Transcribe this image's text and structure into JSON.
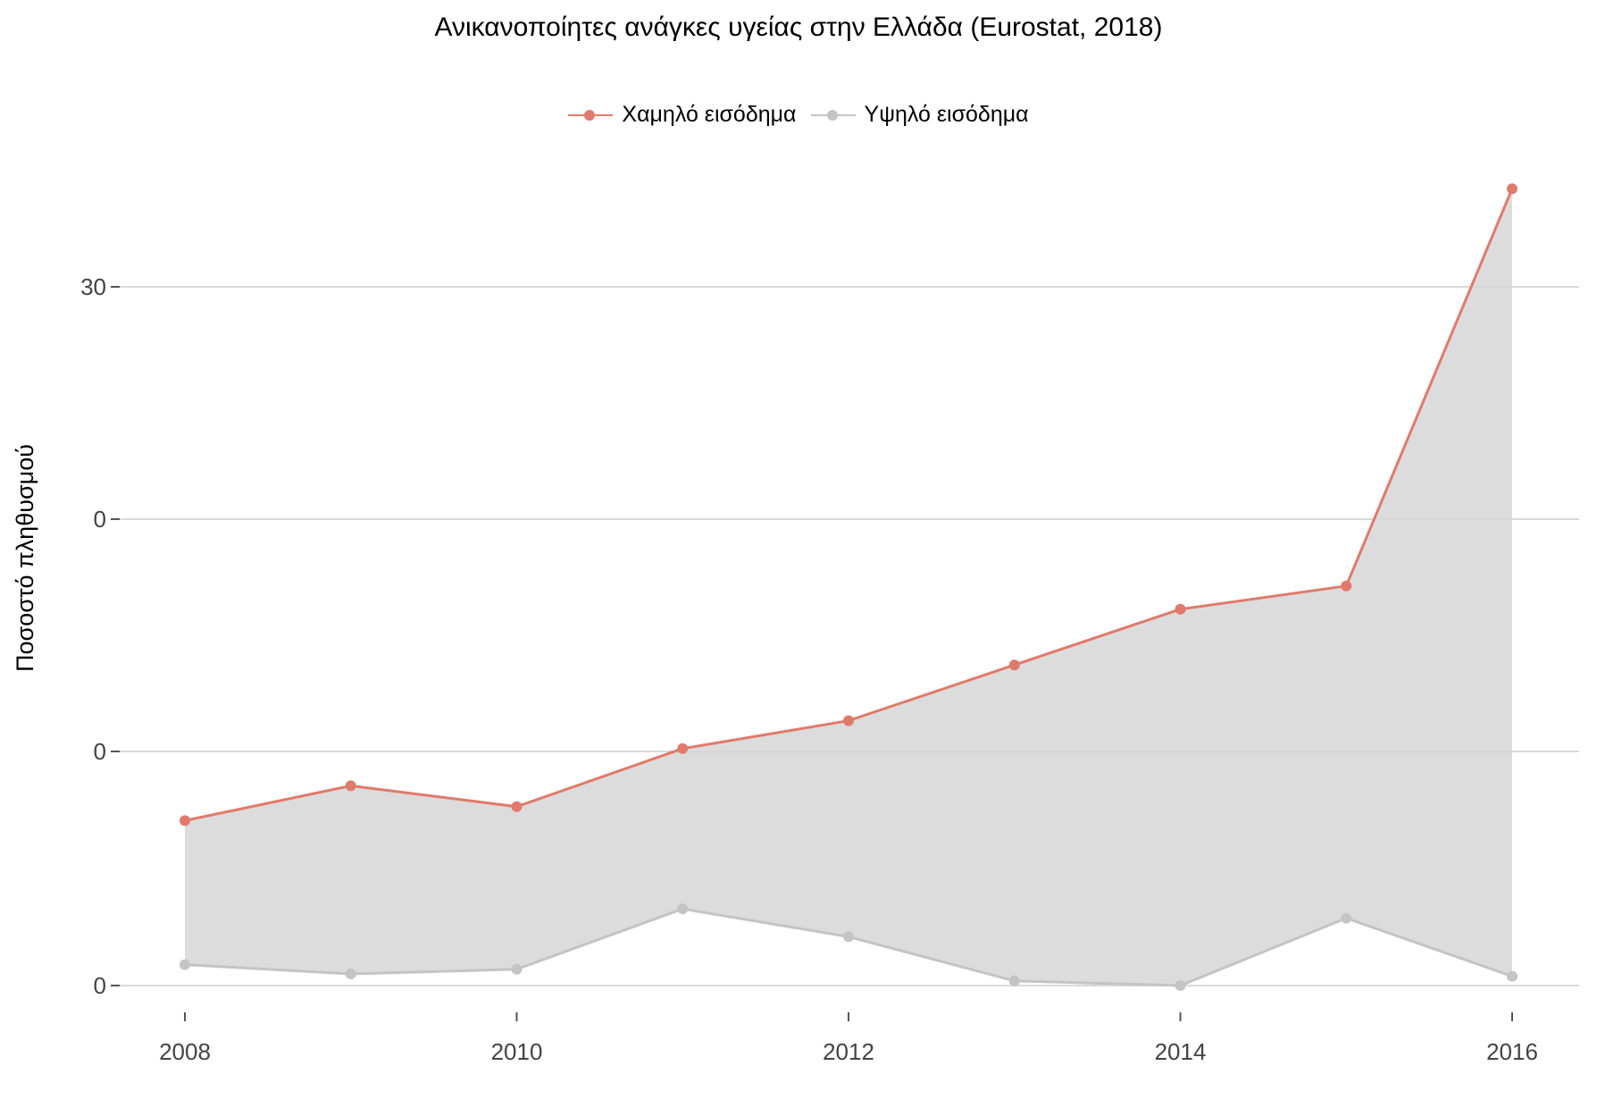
{
  "chart_data": {
    "type": "line",
    "title": "Ανικανοποίητες ανάγκες υγείας στην Ελλάδα (Eurostat, 2018)",
    "ylabel": "Ποσοστό πληθυσμού",
    "xlabel": "",
    "x": [
      2008,
      2009,
      2010,
      2011,
      2012,
      2013,
      2014,
      2015,
      2016
    ],
    "x_ticks": [
      "2008",
      "2010",
      "2012",
      "2014",
      "2016"
    ],
    "y_ticks": [
      "0",
      "0",
      "0",
      "30"
    ],
    "series": [
      {
        "name": "Χαμηλό εισόδημα",
        "color": "#E07A6B",
        "values": [
          7.1,
          8.6,
          7.7,
          10.2,
          11.4,
          13.8,
          16.2,
          17.2,
          34.3
        ]
      },
      {
        "name": "Υψηλό εισόδημα",
        "color": "#C4C4C4",
        "values": [
          0.9,
          0.5,
          0.7,
          3.3,
          2.1,
          0.2,
          0.0,
          2.9,
          0.4
        ]
      }
    ],
    "fill_between_series": true,
    "fill_color": "#D6D6D6",
    "grid": "horizontal",
    "legend_position": "top"
  }
}
